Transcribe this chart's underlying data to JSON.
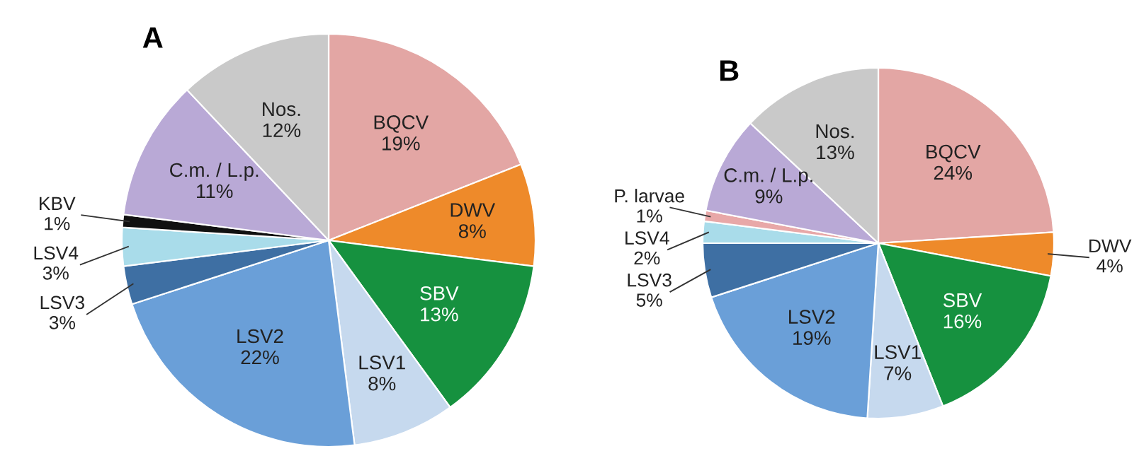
{
  "chart_data": [
    {
      "type": "pie",
      "title": "A",
      "categories": [
        "BQCV",
        "DWV",
        "SBV",
        "LSV1",
        "LSV2",
        "LSV3",
        "LSV4",
        "KBV",
        "C.m. / L.p.",
        "Nos."
      ],
      "values": [
        19,
        8,
        13,
        8,
        22,
        3,
        3,
        1,
        11,
        12
      ],
      "value_labels": [
        "19%",
        "8%",
        "13%",
        "8%",
        "22%",
        "3%",
        "3%",
        "1%",
        "11%",
        "12%"
      ],
      "colors": [
        "#e3a6a4",
        "#ee8a2a",
        "#16913f",
        "#c6d9ee",
        "#6a9fd8",
        "#3e6fa3",
        "#a9dcea",
        "#111111",
        "#b9a9d6",
        "#c9c9c9"
      ]
    },
    {
      "type": "pie",
      "title": "B",
      "categories": [
        "BQCV",
        "DWV",
        "SBV",
        "LSV1",
        "LSV2",
        "LSV3",
        "LSV4",
        "P. larvae",
        "C.m. / L.p.",
        "Nos."
      ],
      "values": [
        24,
        4,
        16,
        7,
        19,
        5,
        2,
        1,
        9,
        13
      ],
      "value_labels": [
        "24%",
        "4%",
        "16%",
        "7%",
        "19%",
        "5%",
        "2%",
        "1%",
        "9%",
        "13%"
      ],
      "colors": [
        "#e3a6a4",
        "#ee8a2a",
        "#16913f",
        "#c6d9ee",
        "#6a9fd8",
        "#3e6fa3",
        "#a9dcea",
        "#e8a8a8",
        "#b9a9d6",
        "#c9c9c9"
      ]
    }
  ]
}
